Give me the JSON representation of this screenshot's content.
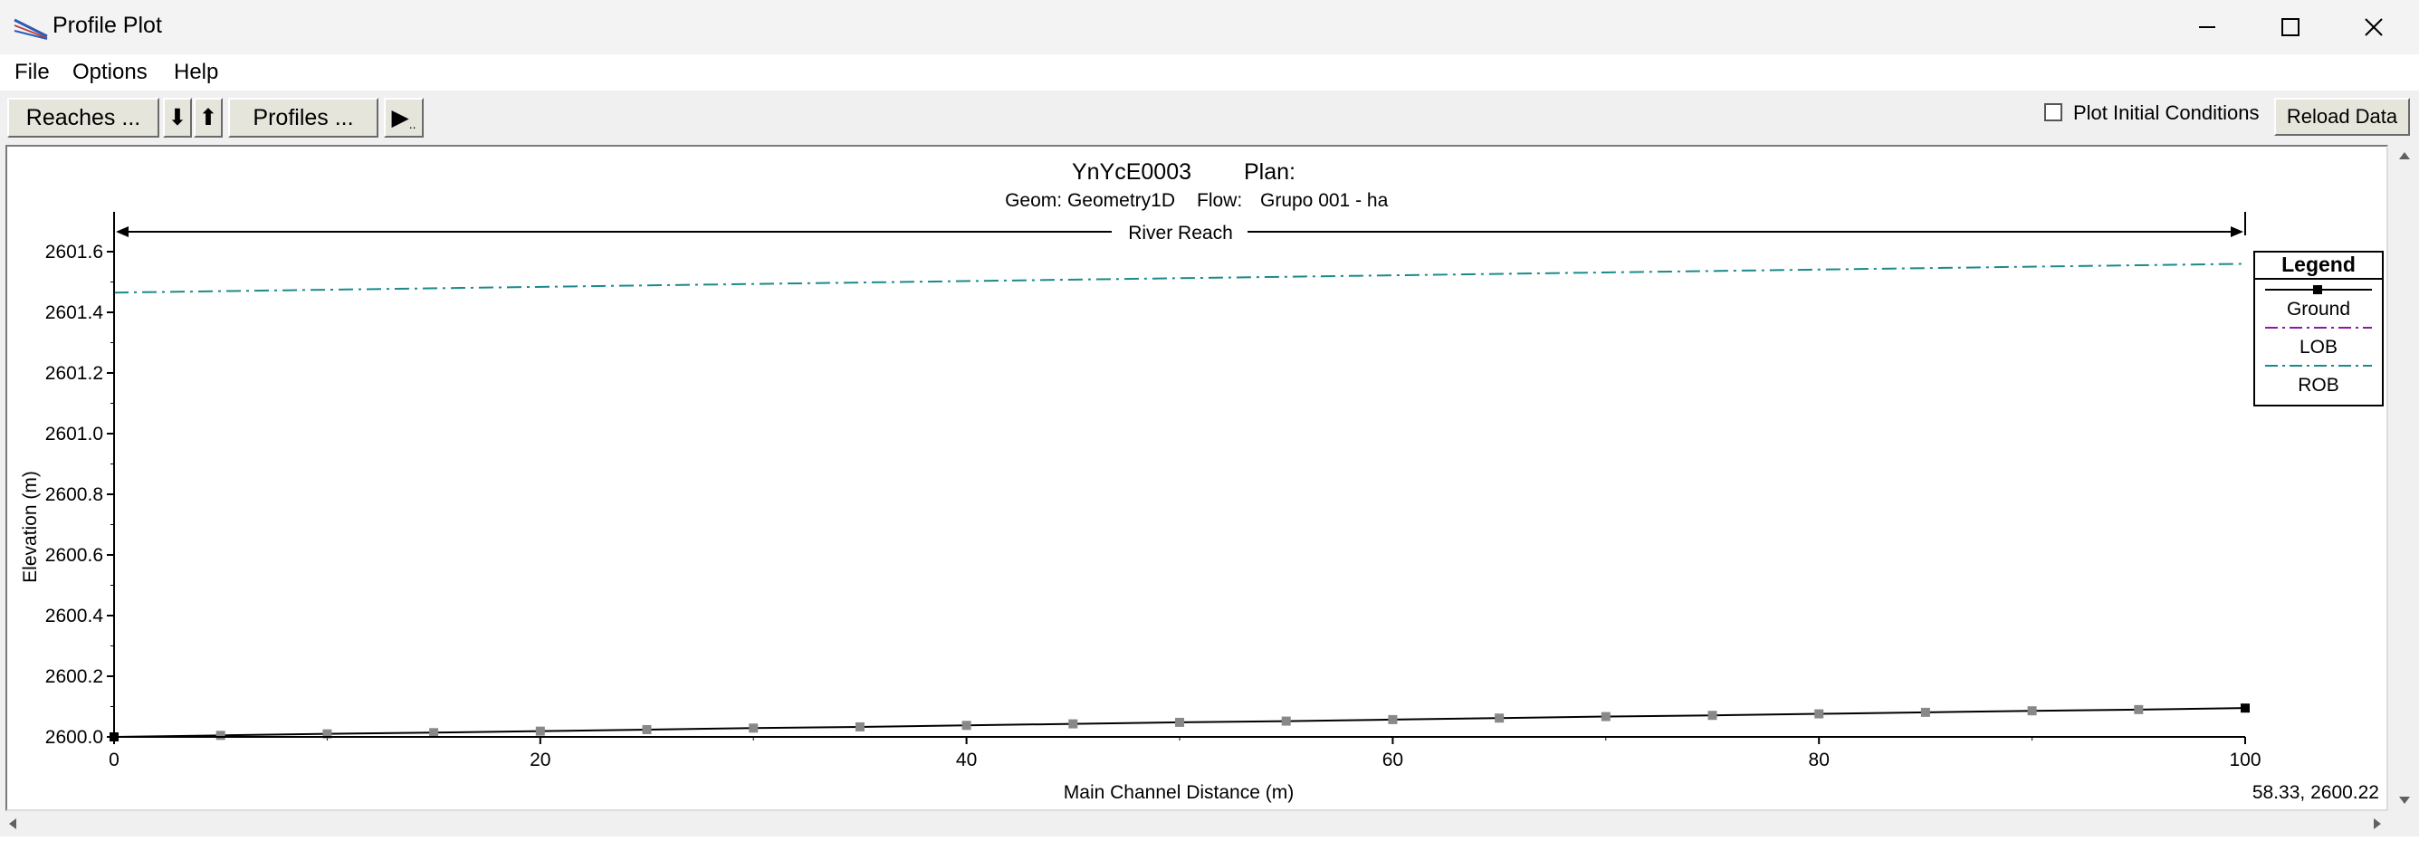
{
  "window": {
    "title": "Profile Plot"
  },
  "menu": {
    "items": [
      "File",
      "Options",
      "Help"
    ]
  },
  "toolbar": {
    "reaches_label": "Reaches ...",
    "profiles_label": "Profiles ...",
    "down_arrow": "⬇",
    "up_arrow": "⬆",
    "play_glyph": "▶",
    "play_dots": "..",
    "plot_initial_conditions_label": "Plot Initial Conditions",
    "plot_initial_conditions_checked": false,
    "reload_label": "Reload Data"
  },
  "plot": {
    "title": "YnYcE0003",
    "plan_label": "Plan:",
    "geom_label": "Geom: Geometry1D",
    "flow_label": "Flow:",
    "flow_value": "Grupo 001 - ha",
    "reach_label": "River Reach",
    "xlabel": "Main Channel Distance (m)",
    "ylabel": "Elevation (m)",
    "cursor_readout": "58.33, 2600.22",
    "legend": {
      "title": "Legend",
      "entries": [
        {
          "label": "Ground",
          "color": "#000000"
        },
        {
          "label": "LOB",
          "color": "#8a1aa6"
        },
        {
          "label": "ROB",
          "color": "#1a8a8a"
        }
      ]
    }
  },
  "chart_data": {
    "type": "line",
    "xlim": [
      0,
      100
    ],
    "ylim": [
      2600.0,
      2601.6
    ],
    "x_ticks": [
      0,
      20,
      40,
      60,
      80,
      100
    ],
    "x_tick_labels": [
      "0",
      "20",
      "40",
      "60",
      "80",
      "100"
    ],
    "y_ticks": [
      2600.0,
      2600.2,
      2600.4,
      2600.6,
      2600.8,
      2601.0,
      2601.2,
      2601.4,
      2601.6
    ],
    "y_tick_labels": [
      "2600.0",
      "2600.2",
      "2600.4",
      "2600.6",
      "2600.8",
      "2601.0",
      "2601.2",
      "2601.4",
      "2601.6"
    ],
    "grid": false,
    "legend_position": "right",
    "series": [
      {
        "name": "Ground",
        "x": [
          0,
          5,
          10,
          15,
          20,
          25,
          30,
          35,
          40,
          45,
          50,
          55,
          60,
          65,
          70,
          75,
          80,
          85,
          90,
          95,
          100
        ],
        "y": [
          2600.0,
          2600.005,
          2600.01,
          2600.014,
          2600.019,
          2600.024,
          2600.029,
          2600.033,
          2600.038,
          2600.043,
          2600.048,
          2600.052,
          2600.057,
          2600.062,
          2600.067,
          2600.071,
          2600.076,
          2600.081,
          2600.086,
          2600.09,
          2600.095
        ]
      },
      {
        "name": "ROB",
        "x": [
          0,
          100
        ],
        "y": [
          2601.465,
          2601.56
        ]
      }
    ]
  }
}
